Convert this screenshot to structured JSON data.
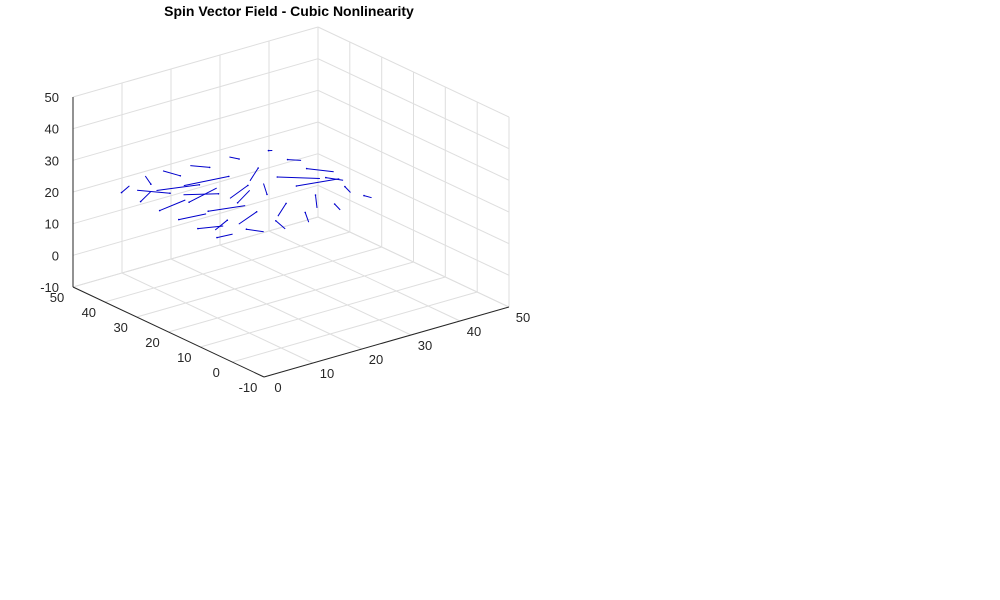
{
  "chart_data": {
    "type": "quiver3d",
    "title": "Spin Vector Field - Cubic Nonlinearity",
    "xlabel": "",
    "ylabel": "",
    "zlabel": "",
    "xlim": [
      0,
      50
    ],
    "ylim": [
      -10,
      50
    ],
    "zlim": [
      -10,
      50
    ],
    "xticks": [
      0,
      10,
      20,
      30,
      40,
      50
    ],
    "yticks": [
      -10,
      0,
      10,
      20,
      30,
      40,
      50
    ],
    "zticks": [
      -10,
      0,
      10,
      20,
      30,
      40,
      50
    ],
    "grid": true,
    "box": false,
    "colors": {
      "arrow": "#0000cc",
      "grid": "#dedede",
      "axis": "#262626"
    },
    "series": [
      {
        "note_units": "spatial grid 0-30 by 0-30 at z=0, arrow components in data units",
        "vectors": [
          [
            0,
            0,
            0,
            2,
            -1,
            0.5
          ],
          [
            0,
            6,
            0,
            3,
            -2,
            0.3
          ],
          [
            0,
            12,
            0,
            4,
            -1,
            0.2
          ],
          [
            0,
            18,
            0,
            5,
            1,
            0.1
          ],
          [
            0,
            24,
            0,
            3,
            2,
            0.3
          ],
          [
            0,
            30,
            0,
            2,
            1,
            0.4
          ],
          [
            6,
            0,
            0,
            1,
            -3,
            0.3
          ],
          [
            6,
            6,
            0,
            -4,
            -3,
            0.6
          ],
          [
            6,
            12,
            0,
            5,
            -2,
            0.2
          ],
          [
            6,
            18,
            0,
            6,
            2,
            0.1
          ],
          [
            6,
            24,
            0,
            -3,
            4,
            0.2
          ],
          [
            6,
            30,
            0,
            1,
            3,
            0.3
          ],
          [
            12,
            0,
            0,
            -1,
            -4,
            0.2
          ],
          [
            12,
            6,
            0,
            -5,
            -3,
            0.4
          ],
          [
            12,
            12,
            0,
            4,
            3,
            0.1
          ],
          [
            12,
            18,
            0,
            -4,
            3,
            0.1
          ],
          [
            12,
            24,
            0,
            -6,
            2,
            0.2
          ],
          [
            12,
            30,
            0,
            -1,
            3,
            0.3
          ],
          [
            18,
            0,
            0,
            -2,
            -4,
            0.2
          ],
          [
            18,
            6,
            0,
            -4,
            -4,
            0.3
          ],
          [
            18,
            12,
            0,
            2,
            4,
            0.1
          ],
          [
            18,
            18,
            0,
            -5,
            -3,
            0.2
          ],
          [
            18,
            24,
            0,
            -7,
            1,
            0.2
          ],
          [
            18,
            30,
            0,
            -2,
            2,
            0.4
          ],
          [
            24,
            0,
            0,
            -1,
            -3,
            0.3
          ],
          [
            24,
            6,
            0,
            -3,
            -5,
            0.3
          ],
          [
            24,
            12,
            0,
            6,
            -2,
            0.2
          ],
          [
            24,
            18,
            0,
            4,
            -5,
            0.2
          ],
          [
            24,
            24,
            0,
            -4,
            -4,
            0.3
          ],
          [
            24,
            30,
            0,
            -1,
            1,
            0.5
          ],
          [
            30,
            0,
            0,
            0,
            -2,
            0.4
          ],
          [
            30,
            6,
            0,
            -1,
            -3,
            0.3
          ],
          [
            30,
            12,
            0,
            1,
            -3,
            0.3
          ],
          [
            30,
            18,
            0,
            2,
            -4,
            0.2
          ],
          [
            30,
            24,
            0,
            1,
            -2,
            0.3
          ],
          [
            30,
            30,
            0,
            0,
            -1,
            0.5
          ]
        ]
      }
    ]
  }
}
